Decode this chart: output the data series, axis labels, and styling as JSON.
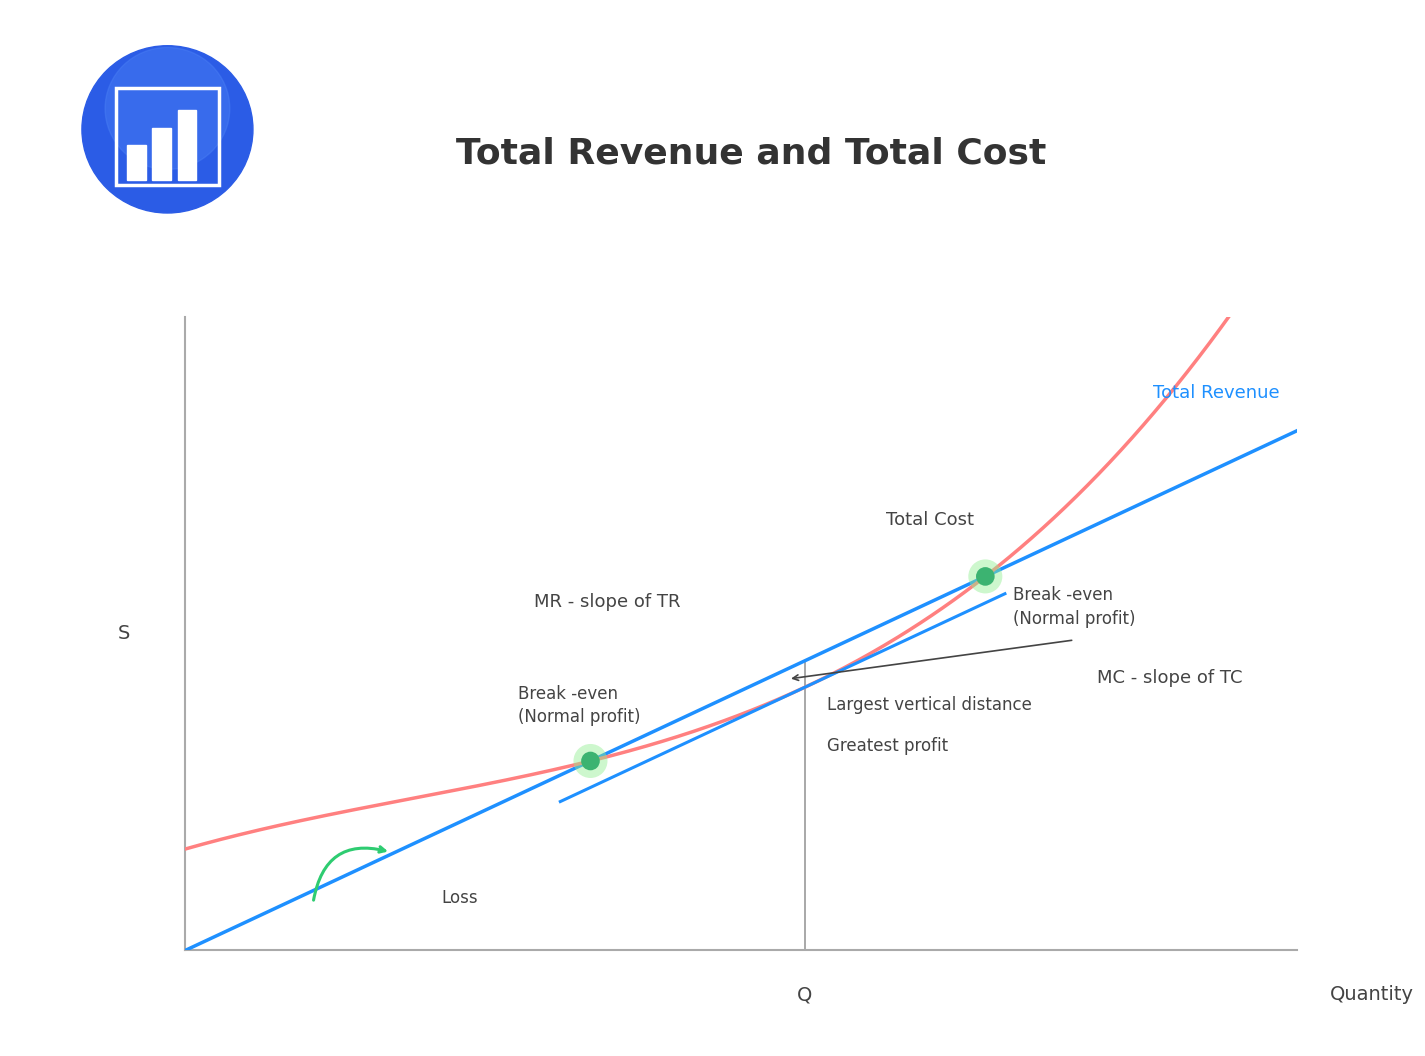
{
  "title": "Total Revenue and Total Cost",
  "ylabel": "S",
  "xlabel": "Quantity",
  "q_label": "Q",
  "tr_color": "#1E90FF",
  "tc_color": "#FF8080",
  "tr_label": "Total Revenue",
  "tc_label": "Total Cost",
  "annotation_color": "#444444",
  "breakeven_color": "#3CB371",
  "breakeven_fill": "#90EE90",
  "mr_label": "MR - slope of TR",
  "mc_label": "MC - slope of TC",
  "break_even_low_label": "Break -even\n(Normal profit)",
  "break_even_high_label": "Break -even\n(Normal profit)",
  "loss_label": "Loss",
  "largest_vert_label": "Largest vertical distance",
  "greatest_profit_label": "Greatest profit",
  "bg_color": "#FFFFFF",
  "axis_color": "#888888",
  "title_color": "#333333",
  "icon_bg_color_top": "#3B6FE8",
  "icon_bg_color_bot": "#1A3FC4",
  "tr_slope": 0.82,
  "tc_a": 1.6,
  "tc_b": 0.5,
  "tc_c": -0.08,
  "tc_d": 0.013,
  "xlim": [
    0,
    10
  ],
  "ylim": [
    0,
    10
  ]
}
